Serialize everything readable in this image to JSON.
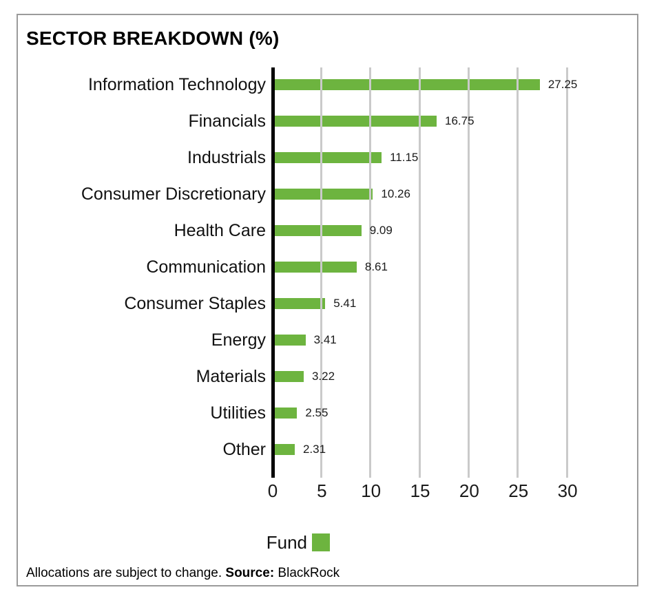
{
  "chart_data": {
    "type": "bar",
    "orientation": "horizontal",
    "title": "SECTOR BREAKDOWN (%)",
    "categories": [
      "Information Technology",
      "Financials",
      "Industrials",
      "Consumer Discretionary",
      "Health Care",
      "Communication",
      "Consumer Staples",
      "Energy",
      "Materials",
      "Utilities",
      "Other"
    ],
    "values": [
      27.25,
      16.75,
      11.15,
      10.26,
      9.09,
      8.61,
      5.41,
      3.41,
      3.22,
      2.55,
      2.31
    ],
    "value_labels": [
      "27.25",
      "16.75",
      "11.15",
      "10.26",
      "9.09",
      "8.61",
      "5.41",
      "3.41",
      "3.22",
      "2.55",
      "2.31"
    ],
    "series_name": "Fund",
    "xlim": [
      0,
      30
    ],
    "xticks": [
      "0",
      "5",
      "10",
      "15",
      "20",
      "25",
      "30"
    ],
    "grid": "vertical",
    "legend_position": "bottom"
  },
  "legend": {
    "label": "Fund"
  },
  "footer": {
    "note": "Allocations are subject to change. ",
    "source_label": "Source:",
    "source_value": " BlackRock"
  },
  "colors": {
    "bar": "#6db43f",
    "gridline": "#cacaca",
    "axis": "#000000",
    "frame_border": "#9b9b9b",
    "text": "#1a1a1a"
  }
}
